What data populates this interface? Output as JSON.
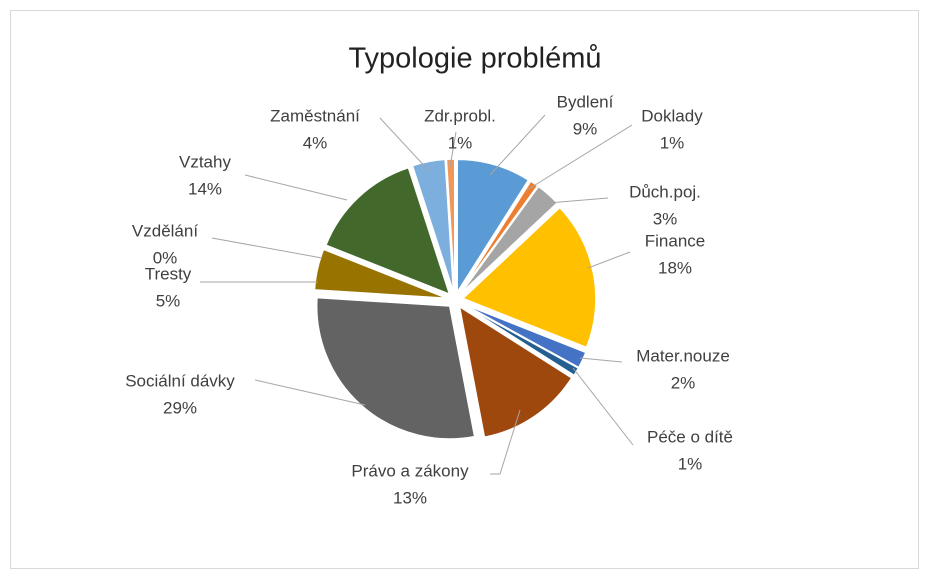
{
  "chart_data": {
    "type": "pie",
    "title": "Typologie problémů",
    "categories": [
      "Bydlení",
      "Doklady",
      "Důch.poj.",
      "Finance",
      "Mater.nouze",
      "Péče o dítě",
      "Právo a zákony",
      "Sociální dávky",
      "Tresty",
      "Vzdělání",
      "Vztahy",
      "Zaměstnání",
      "Zdr.probl."
    ],
    "values": [
      9,
      1,
      3,
      18,
      2,
      1,
      13,
      29,
      5,
      0,
      14,
      4,
      1
    ],
    "value_labels": [
      "9%",
      "1%",
      "3%",
      "18%",
      "2%",
      "1%",
      "13%",
      "29%",
      "5%",
      "0%",
      "14%",
      "4%",
      "1%"
    ],
    "colors": [
      "#5b9bd5",
      "#ed7d31",
      "#a5a5a5",
      "#ffc000",
      "#4472c4",
      "#255e91",
      "#9e480e",
      "#636363",
      "#997300",
      "#264478",
      "#43682b",
      "#7cafdd",
      "#f1975a"
    ]
  }
}
